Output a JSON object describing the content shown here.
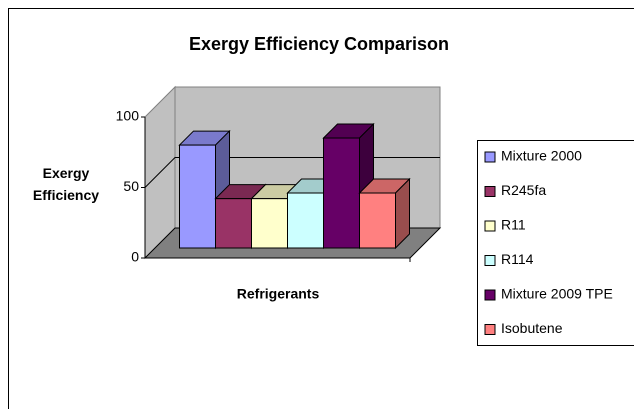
{
  "chart_data": {
    "type": "bar3d",
    "title": "Exergy Efficiency Comparison",
    "x_label": "Refrigerants",
    "y_label": "Exergy Efficiency",
    "categories": [
      null
    ],
    "series": [
      {
        "name": "Mixture 2000",
        "color": "#9999ff",
        "values": [
          73
        ]
      },
      {
        "name": "R245fa",
        "color": "#993366",
        "values": [
          35
        ]
      },
      {
        "name": "R11",
        "color": "#ffffcc",
        "values": [
          35
        ]
      },
      {
        "name": "R114",
        "color": "#ccffff",
        "values": [
          39
        ]
      },
      {
        "name": "Mixture 2009 TPE",
        "color": "#660066",
        "values": [
          78
        ]
      },
      {
        "name": "Isobutene",
        "color": "#ff8080",
        "values": [
          39
        ]
      }
    ],
    "ylim": [
      0,
      100
    ],
    "yticks": [
      0,
      50,
      100
    ],
    "grid": true,
    "legend": "right"
  }
}
